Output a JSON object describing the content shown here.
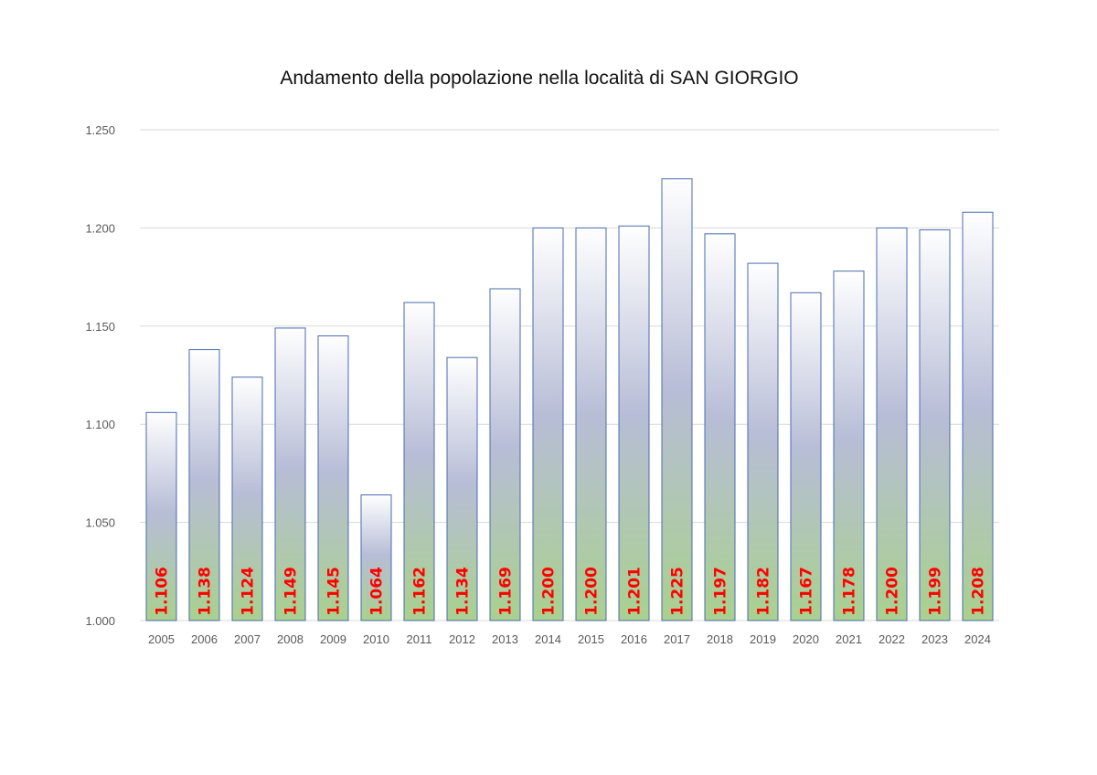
{
  "chart_data": {
    "type": "bar",
    "title": "Andamento della popolazione nella località di SAN GIORGIO",
    "xlabel": "",
    "ylabel": "",
    "categories": [
      "2005",
      "2006",
      "2007",
      "2008",
      "2009",
      "2010",
      "2011",
      "2012",
      "2013",
      "2014",
      "2015",
      "2016",
      "2017",
      "2018",
      "2019",
      "2020",
      "2021",
      "2022",
      "2023",
      "2024"
    ],
    "values": [
      1106,
      1138,
      1124,
      1149,
      1145,
      1064,
      1162,
      1134,
      1169,
      1200,
      1200,
      1201,
      1225,
      1197,
      1182,
      1167,
      1178,
      1200,
      1199,
      1208
    ],
    "value_labels": [
      "1.106",
      "1.138",
      "1.124",
      "1.149",
      "1.145",
      "1.064",
      "1.162",
      "1.134",
      "1.169",
      "1.200",
      "1.200",
      "1.201",
      "1.225",
      "1.197",
      "1.182",
      "1.167",
      "1.178",
      "1.200",
      "1.199",
      "1.208"
    ],
    "ylim": [
      1000,
      1250
    ],
    "yticks": [
      1000,
      1050,
      1100,
      1150,
      1200,
      1250
    ],
    "ytick_labels": [
      "1.000",
      "1.050",
      "1.100",
      "1.150",
      "1.200",
      "1.250"
    ],
    "grid": true,
    "legend": "none",
    "colors": {
      "bar_outline": "#4a6bb0",
      "bar_gradient_top": "#ffffff",
      "bar_gradient_middle": "#b7bdd6",
      "bar_gradient_bottom": "#a9d18e",
      "value_label": "#ff0000",
      "gridline": "#d9d9d9",
      "tick_label": "#595959"
    }
  }
}
